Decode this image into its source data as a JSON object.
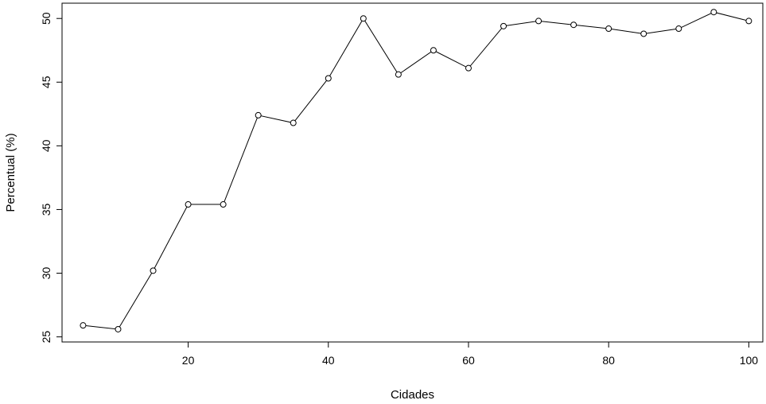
{
  "chart_data": {
    "type": "line",
    "title": "",
    "xlabel": "Cidades",
    "ylabel": "Percentual (%)",
    "x": [
      5,
      10,
      15,
      20,
      25,
      30,
      35,
      40,
      45,
      50,
      55,
      60,
      65,
      70,
      75,
      80,
      85,
      90,
      95,
      100
    ],
    "series": [
      {
        "values": [
          25.9,
          25.6,
          30.2,
          35.4,
          35.4,
          42.4,
          41.8,
          45.3,
          50.0,
          45.6,
          47.5,
          46.1,
          49.4,
          49.8,
          49.5,
          49.2,
          48.8,
          49.2,
          50.5,
          49.8
        ],
        "color": "#000000",
        "marker": "open-circle"
      }
    ],
    "xlim": [
      2,
      102
    ],
    "ylim": [
      24.6,
      51.2
    ],
    "xticks": [
      20,
      40,
      60,
      80,
      100
    ],
    "yticks": [
      25,
      30,
      35,
      40,
      45,
      50
    ],
    "grid": false,
    "legend": "none"
  }
}
